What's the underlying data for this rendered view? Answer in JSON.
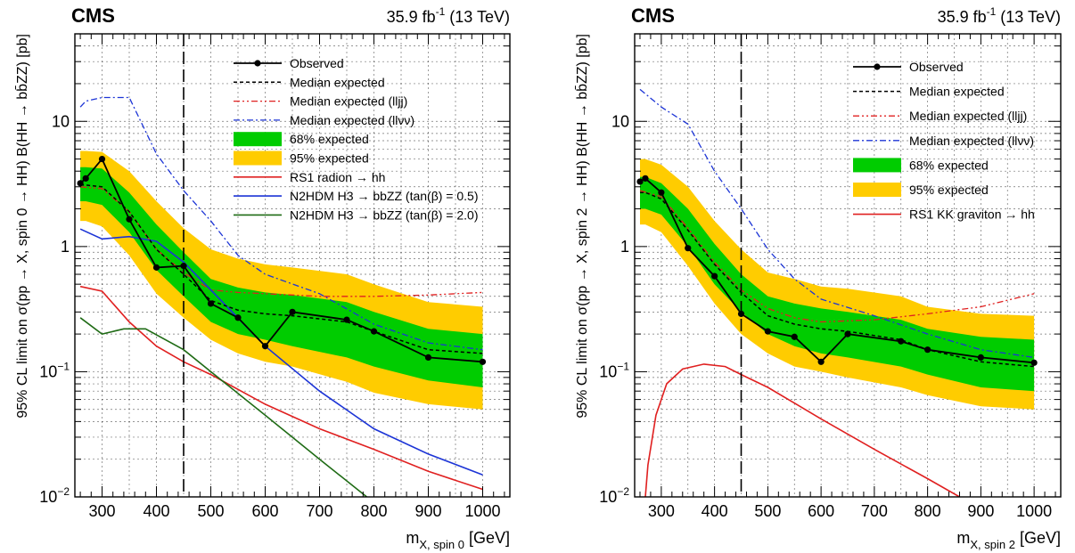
{
  "chart_data": [
    {
      "type": "line",
      "experiment": "CMS",
      "lumi_value": "35.9 fb",
      "lumi_exp": "-1",
      "lumi_energy": " (13 TeV)",
      "xlabel_main": "m",
      "xlabel_sub": "X, spin 0",
      "xlabel_unit": " [GeV]",
      "ylabel": "95% CL limit on σ(pp → X, spin 0 → HH)  B(HH → bb̄ZZ) [pb]",
      "xlim": [
        250,
        1050
      ],
      "ylim": [
        0.01,
        50
      ],
      "yscale": "log",
      "grid": true,
      "x_ticks": [
        300,
        400,
        500,
        600,
        700,
        800,
        900,
        1000
      ],
      "y_ticks": [
        {
          "value": 0.01,
          "base": "10",
          "exp": "−2"
        },
        {
          "value": 0.1,
          "base": "10",
          "exp": "−1"
        },
        {
          "value": 1,
          "base": "1",
          "exp": ""
        },
        {
          "value": 10,
          "base": "10",
          "exp": ""
        }
      ],
      "vline_x": 450,
      "x": [
        260,
        270,
        300,
        350,
        400,
        450,
        500,
        550,
        600,
        650,
        750,
        800,
        900,
        1000
      ],
      "band95_low": [
        1.6,
        1.6,
        1.45,
        0.85,
        0.42,
        0.27,
        0.18,
        0.14,
        0.12,
        0.11,
        0.083,
        0.068,
        0.055,
        0.05
      ],
      "band95_high": [
        5.8,
        5.8,
        5.7,
        4.0,
        2.3,
        1.4,
        0.95,
        0.8,
        0.72,
        0.68,
        0.6,
        0.5,
        0.36,
        0.33
      ],
      "band68_low": [
        2.3,
        2.3,
        2.15,
        1.3,
        0.65,
        0.4,
        0.25,
        0.2,
        0.18,
        0.16,
        0.13,
        0.11,
        0.085,
        0.075
      ],
      "band68_high": [
        4.3,
        4.3,
        4.2,
        2.7,
        1.5,
        0.9,
        0.55,
        0.47,
        0.43,
        0.41,
        0.36,
        0.3,
        0.22,
        0.2
      ],
      "observed": [
        3.2,
        3.5,
        5.0,
        1.65,
        0.68,
        0.7,
        0.35,
        0.27,
        0.16,
        0.3,
        0.26,
        0.21,
        0.13,
        0.12
      ],
      "median_expected": [
        3.1,
        3.1,
        3.0,
        1.9,
        0.95,
        0.6,
        0.37,
        0.31,
        0.29,
        0.28,
        0.25,
        0.21,
        0.15,
        0.14
      ],
      "median_llj": {
        "x": [
          260,
          300,
          350,
          400,
          450,
          500,
          550,
          600,
          650,
          700,
          800,
          900,
          1000
        ],
        "y": [
          3.0,
          2.9,
          1.9,
          0.95,
          0.62,
          0.45,
          0.43,
          0.42,
          0.41,
          0.4,
          0.4,
          0.41,
          0.43
        ]
      },
      "median_llvv": {
        "x": [
          260,
          270,
          300,
          350,
          400,
          450,
          500,
          550,
          600,
          700,
          800,
          900,
          1000
        ],
        "y": [
          13,
          14.5,
          15.5,
          15.5,
          5.5,
          2.8,
          1.6,
          0.85,
          0.6,
          0.42,
          0.24,
          0.17,
          0.15
        ]
      },
      "theory": [
        {
          "name": "RS1 radion → hh",
          "color": "#e02020",
          "x": [
            260,
            300,
            350,
            400,
            450,
            500,
            600,
            700,
            800,
            900,
            1000
          ],
          "y": [
            0.48,
            0.44,
            0.25,
            0.16,
            0.12,
            0.095,
            0.055,
            0.035,
            0.024,
            0.016,
            0.0115
          ]
        },
        {
          "name": "N2HDM H3 → bbZZ (tan(β) = 0.5)",
          "color": "#1c34d6",
          "x": [
            260,
            300,
            350,
            400,
            450,
            500,
            600,
            700,
            800,
            900,
            1000
          ],
          "y": [
            1.38,
            1.15,
            1.2,
            1.1,
            0.75,
            0.45,
            0.16,
            0.07,
            0.035,
            0.022,
            0.015
          ]
        },
        {
          "name": "N2HDM H3 → bbZZ (tan(β) = 2.0)",
          "color": "#1f6b15",
          "x": [
            260,
            300,
            340,
            380,
            450,
            500,
            600,
            700,
            800
          ],
          "y": [
            0.27,
            0.2,
            0.22,
            0.22,
            0.15,
            0.1,
            0.045,
            0.02,
            0.009
          ]
        }
      ],
      "legend": [
        {
          "label": "Observed",
          "kind": "observed"
        },
        {
          "label": "Median expected",
          "kind": "dash"
        },
        {
          "label": "Median expected (lljj)",
          "kind": "dashdot_red"
        },
        {
          "label": "Median expected (llνν)",
          "kind": "dashdot_blue"
        },
        {
          "label": "68% expected",
          "kind": "box_green"
        },
        {
          "label": "95% expected",
          "kind": "box_yellow"
        },
        {
          "label": "RS1 radion  → hh",
          "kind": "line_red"
        },
        {
          "label": "N2HDM H3 → bbZZ (tan(β) = 0.5)",
          "kind": "line_blue"
        },
        {
          "label": "N2HDM H3 → bbZZ (tan(β) = 2.0)",
          "kind": "line_green"
        }
      ]
    },
    {
      "type": "line",
      "experiment": "CMS",
      "lumi_value": "35.9 fb",
      "lumi_exp": "-1",
      "lumi_energy": " (13 TeV)",
      "xlabel_main": "m",
      "xlabel_sub": "X, spin 2",
      "xlabel_unit": " [GeV]",
      "ylabel": "95% CL limit on σ(pp → X, spin 2 → HH)  B(HH → bb̄ZZ) [pb]",
      "xlim": [
        250,
        1050
      ],
      "ylim": [
        0.01,
        50
      ],
      "yscale": "log",
      "grid": true,
      "x_ticks": [
        300,
        400,
        500,
        600,
        700,
        800,
        900,
        1000
      ],
      "y_ticks": [
        {
          "value": 0.01,
          "base": "10",
          "exp": "−2"
        },
        {
          "value": 0.1,
          "base": "10",
          "exp": "−1"
        },
        {
          "value": 1,
          "base": "1",
          "exp": ""
        },
        {
          "value": 10,
          "base": "10",
          "exp": ""
        }
      ],
      "vline_x": 450,
      "x": [
        260,
        270,
        300,
        350,
        400,
        450,
        500,
        550,
        600,
        650,
        750,
        800,
        900,
        1000
      ],
      "band95_low": [
        1.5,
        1.5,
        1.3,
        0.7,
        0.35,
        0.2,
        0.14,
        0.11,
        0.1,
        0.09,
        0.075,
        0.065,
        0.053,
        0.05
      ],
      "band95_high": [
        5.0,
        5.0,
        4.5,
        3.0,
        1.6,
        0.95,
        0.62,
        0.55,
        0.48,
        0.46,
        0.4,
        0.33,
        0.29,
        0.28
      ],
      "band68_low": [
        2.0,
        2.0,
        1.8,
        1.0,
        0.5,
        0.3,
        0.2,
        0.16,
        0.14,
        0.13,
        0.11,
        0.095,
        0.075,
        0.07
      ],
      "band68_high": [
        3.6,
        3.6,
        3.2,
        2.0,
        1.05,
        0.6,
        0.4,
        0.35,
        0.32,
        0.3,
        0.26,
        0.22,
        0.19,
        0.18
      ],
      "observed": [
        3.3,
        3.5,
        2.7,
        0.97,
        0.58,
        0.29,
        0.21,
        0.19,
        0.12,
        0.2,
        0.175,
        0.15,
        0.13,
        0.118
      ],
      "median_expected": [
        2.7,
        2.7,
        2.4,
        1.35,
        0.72,
        0.43,
        0.28,
        0.24,
        0.22,
        0.21,
        0.18,
        0.15,
        0.12,
        0.11
      ],
      "median_llj": {
        "x": [
          260,
          300,
          350,
          400,
          450,
          500,
          550,
          600,
          700,
          800,
          900,
          1000
        ],
        "y": [
          2.8,
          2.5,
          1.4,
          0.75,
          0.45,
          0.32,
          0.27,
          0.25,
          0.26,
          0.29,
          0.33,
          0.42
        ]
      },
      "median_llvv": {
        "x": [
          260,
          300,
          350,
          400,
          450,
          500,
          550,
          600,
          700,
          800,
          900,
          1000
        ],
        "y": [
          18,
          13,
          9.5,
          4.0,
          2.0,
          0.95,
          0.55,
          0.38,
          0.28,
          0.2,
          0.15,
          0.13
        ]
      },
      "theory": [
        {
          "name": "RS1 KK graviton → hh",
          "color": "#e02020",
          "x": [
            270,
            275,
            290,
            310,
            340,
            380,
            420,
            450,
            500,
            600,
            700,
            800,
            860
          ],
          "y": [
            0.01,
            0.018,
            0.045,
            0.08,
            0.105,
            0.115,
            0.11,
            0.095,
            0.075,
            0.042,
            0.024,
            0.014,
            0.01
          ]
        }
      ],
      "legend": [
        {
          "label": "Observed",
          "kind": "observed"
        },
        {
          "label": "Median expected",
          "kind": "dash"
        },
        {
          "label": "Median expected (lljj)",
          "kind": "dashdot_red"
        },
        {
          "label": "Median expected (llνν)",
          "kind": "dashdot_blue"
        },
        {
          "label": "68% expected",
          "kind": "box_green"
        },
        {
          "label": "95% expected",
          "kind": "box_yellow"
        },
        {
          "label": "RS1 KK graviton → hh",
          "kind": "line_red"
        }
      ]
    }
  ],
  "colors": {
    "band68": "#00cc00",
    "band95": "#ffcc00",
    "observed": "#000000",
    "llj": "#e02020",
    "llvv": "#1c34d6"
  }
}
